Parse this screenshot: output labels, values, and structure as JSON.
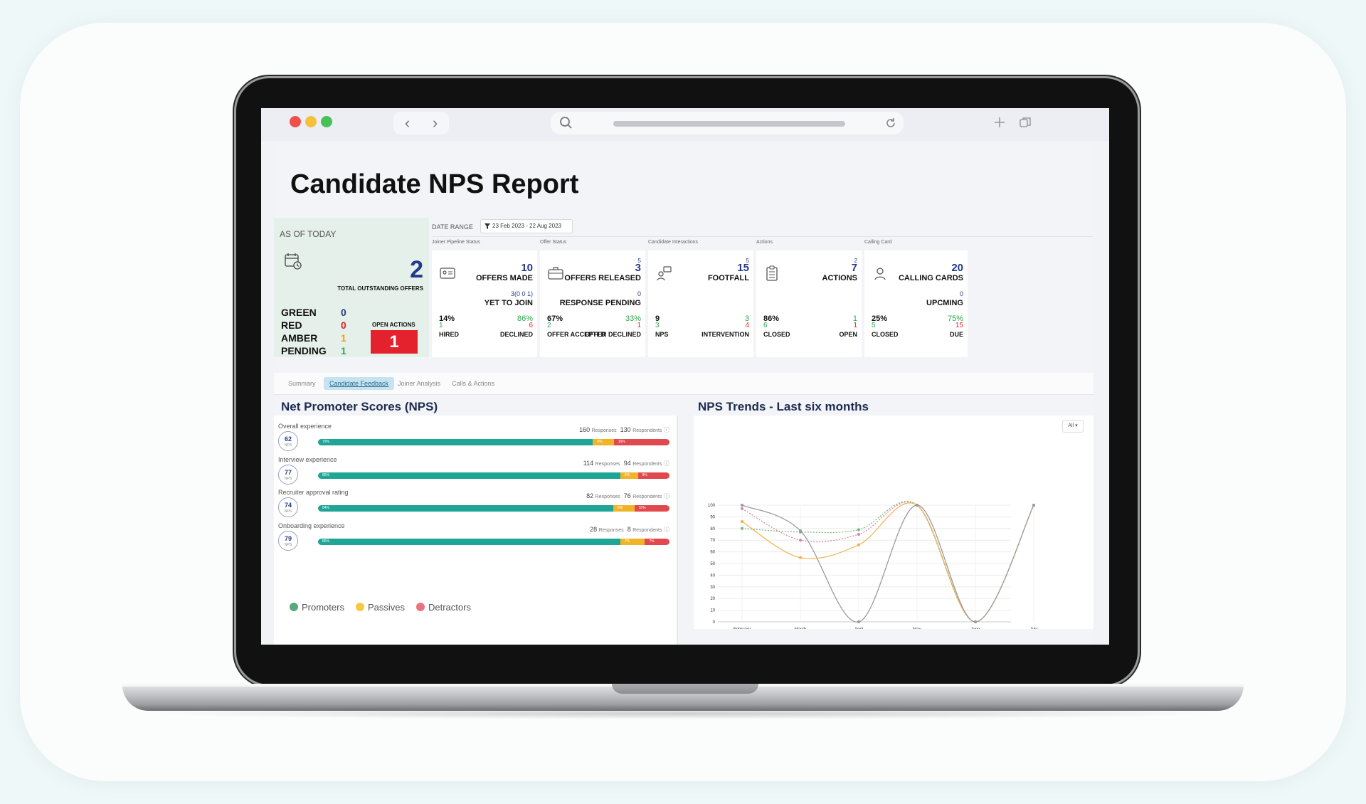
{
  "browser": {
    "search_icon": "search-icon",
    "reload_icon": "reload-icon"
  },
  "page": {
    "title": "Candidate NPS Report"
  },
  "today": {
    "label": "AS OF TODAY",
    "total": "2",
    "total_label": "TOTAL OUTSTANDING OFFERS",
    "stats": [
      {
        "label": "GREEN",
        "value": "0",
        "color": "#233a8a"
      },
      {
        "label": "RED",
        "value": "0",
        "color": "#e4222e"
      },
      {
        "label": "AMBER",
        "value": "1",
        "color": "#f0a000"
      },
      {
        "label": "PENDING",
        "value": "1",
        "color": "#2da84b"
      }
    ],
    "open_actions_label": "OPEN ACTIONS",
    "open_actions_value": "1"
  },
  "date_range": {
    "label": "DATE RANGE",
    "value": "23 Feb 2023 - 22 Aug 2023"
  },
  "kpis": [
    {
      "category": "Joiner Pipeline Status",
      "sup": "",
      "num": "10",
      "title": "OFFERS MADE",
      "sub_num": "3(0 0 1)",
      "sub_label": "YET TO JOIN",
      "left_pct": "14%",
      "left_num": "1",
      "left_label": "HIRED",
      "right_pct": "86%",
      "right_num": "6",
      "right_label": "DECLINED"
    },
    {
      "category": "Offer Status",
      "sup": "5",
      "num": "3",
      "title": "OFFERS RELEASED",
      "sub_num": "0",
      "sub_label": "RESPONSE PENDING",
      "left_pct": "67%",
      "left_num": "2",
      "left_label": "OFFER ACCEPTED",
      "right_pct": "33%",
      "right_num": "1",
      "right_label": "OFFER DECLINED"
    },
    {
      "category": "Candidate Interactions",
      "sup": "5",
      "num": "15",
      "title": "FOOTFALL",
      "sub_num": "",
      "sub_label": "",
      "left_pct": "9",
      "left_num": "3",
      "left_label": "NPS",
      "right_pct": "3",
      "right_num": "4",
      "right_label": "INTERVENTION"
    },
    {
      "category": "Actions",
      "sup": "2",
      "num": "7",
      "title": "ACTIONS",
      "sub_num": "",
      "sub_label": "",
      "left_pct": "86%",
      "left_num": "6",
      "left_label": "CLOSED",
      "right_pct": "1",
      "right_num": "1",
      "right_label": "OPEN"
    },
    {
      "category": "Calling Card",
      "sup": "",
      "num": "20",
      "title": "CALLING CARDS",
      "sub_num": "0",
      "sub_label": "UPCMING",
      "left_pct": "25%",
      "left_num": "5",
      "left_label": "CLOSED",
      "right_pct": "75%",
      "right_num": "15",
      "right_label": "DUE"
    }
  ],
  "tabs": [
    "Summary",
    "Candidate Feedback",
    "Joiner Analysis",
    "Calls & Actions"
  ],
  "nps": {
    "title": "Net Promoter Scores (NPS)",
    "badge_unit": "NPS",
    "responses_word": "Responses",
    "respondents_word": "Respondents",
    "rows": [
      {
        "label": "Overall experience",
        "score": "62",
        "responses": "160",
        "respondents": "130",
        "promoters": 79,
        "passives": 6,
        "detractors": 16
      },
      {
        "label": "Interview experience",
        "score": "77",
        "responses": "114",
        "respondents": "94",
        "promoters": 86,
        "passives": 5,
        "detractors": 9
      },
      {
        "label": "Recruiter approval rating",
        "score": "74",
        "responses": "82",
        "respondents": "76",
        "promoters": 84,
        "passives": 6,
        "detractors": 10
      },
      {
        "label": "Onboarding experience",
        "score": "79",
        "responses": "28",
        "respondents": "8",
        "promoters": 86,
        "passives": 7,
        "detractors": 7
      }
    ],
    "legend": [
      {
        "label": "Promoters",
        "color": "#5aa87d"
      },
      {
        "label": "Passives",
        "color": "#f5c842"
      },
      {
        "label": "Detractors",
        "color": "#e97381"
      }
    ],
    "colors": {
      "promoters": "#1fa596",
      "passives": "#f0b429",
      "detractors": "#e04a4f"
    }
  },
  "trends": {
    "title": "NPS Trends - Last six months",
    "dropdown": "All ▾"
  },
  "chart_data": {
    "type": "line",
    "categories": [
      "February",
      "March",
      "April",
      "May",
      "June",
      "July"
    ],
    "ylim": [
      0,
      100
    ],
    "yticks": [
      0,
      10,
      20,
      30,
      40,
      50,
      60,
      70,
      80,
      90,
      100
    ],
    "grid": true,
    "series": [
      {
        "values": [
          100,
          78,
          0,
          100,
          0,
          100
        ],
        "color": "#8a7fc0",
        "dashed": true
      },
      {
        "values": [
          97,
          70,
          75,
          100,
          0,
          100
        ],
        "color": "#d97fa6",
        "dashed": true
      },
      {
        "values": [
          80,
          77,
          79,
          100,
          0,
          100
        ],
        "color": "#78b478",
        "dashed": true
      },
      {
        "values": [
          86,
          55,
          66,
          100,
          0,
          100
        ],
        "color": "#f1b04d",
        "dashed": false
      },
      {
        "values": [
          100,
          78,
          0,
          100,
          0,
          100
        ],
        "color": "#9a9a9a",
        "dashed": false
      }
    ]
  }
}
